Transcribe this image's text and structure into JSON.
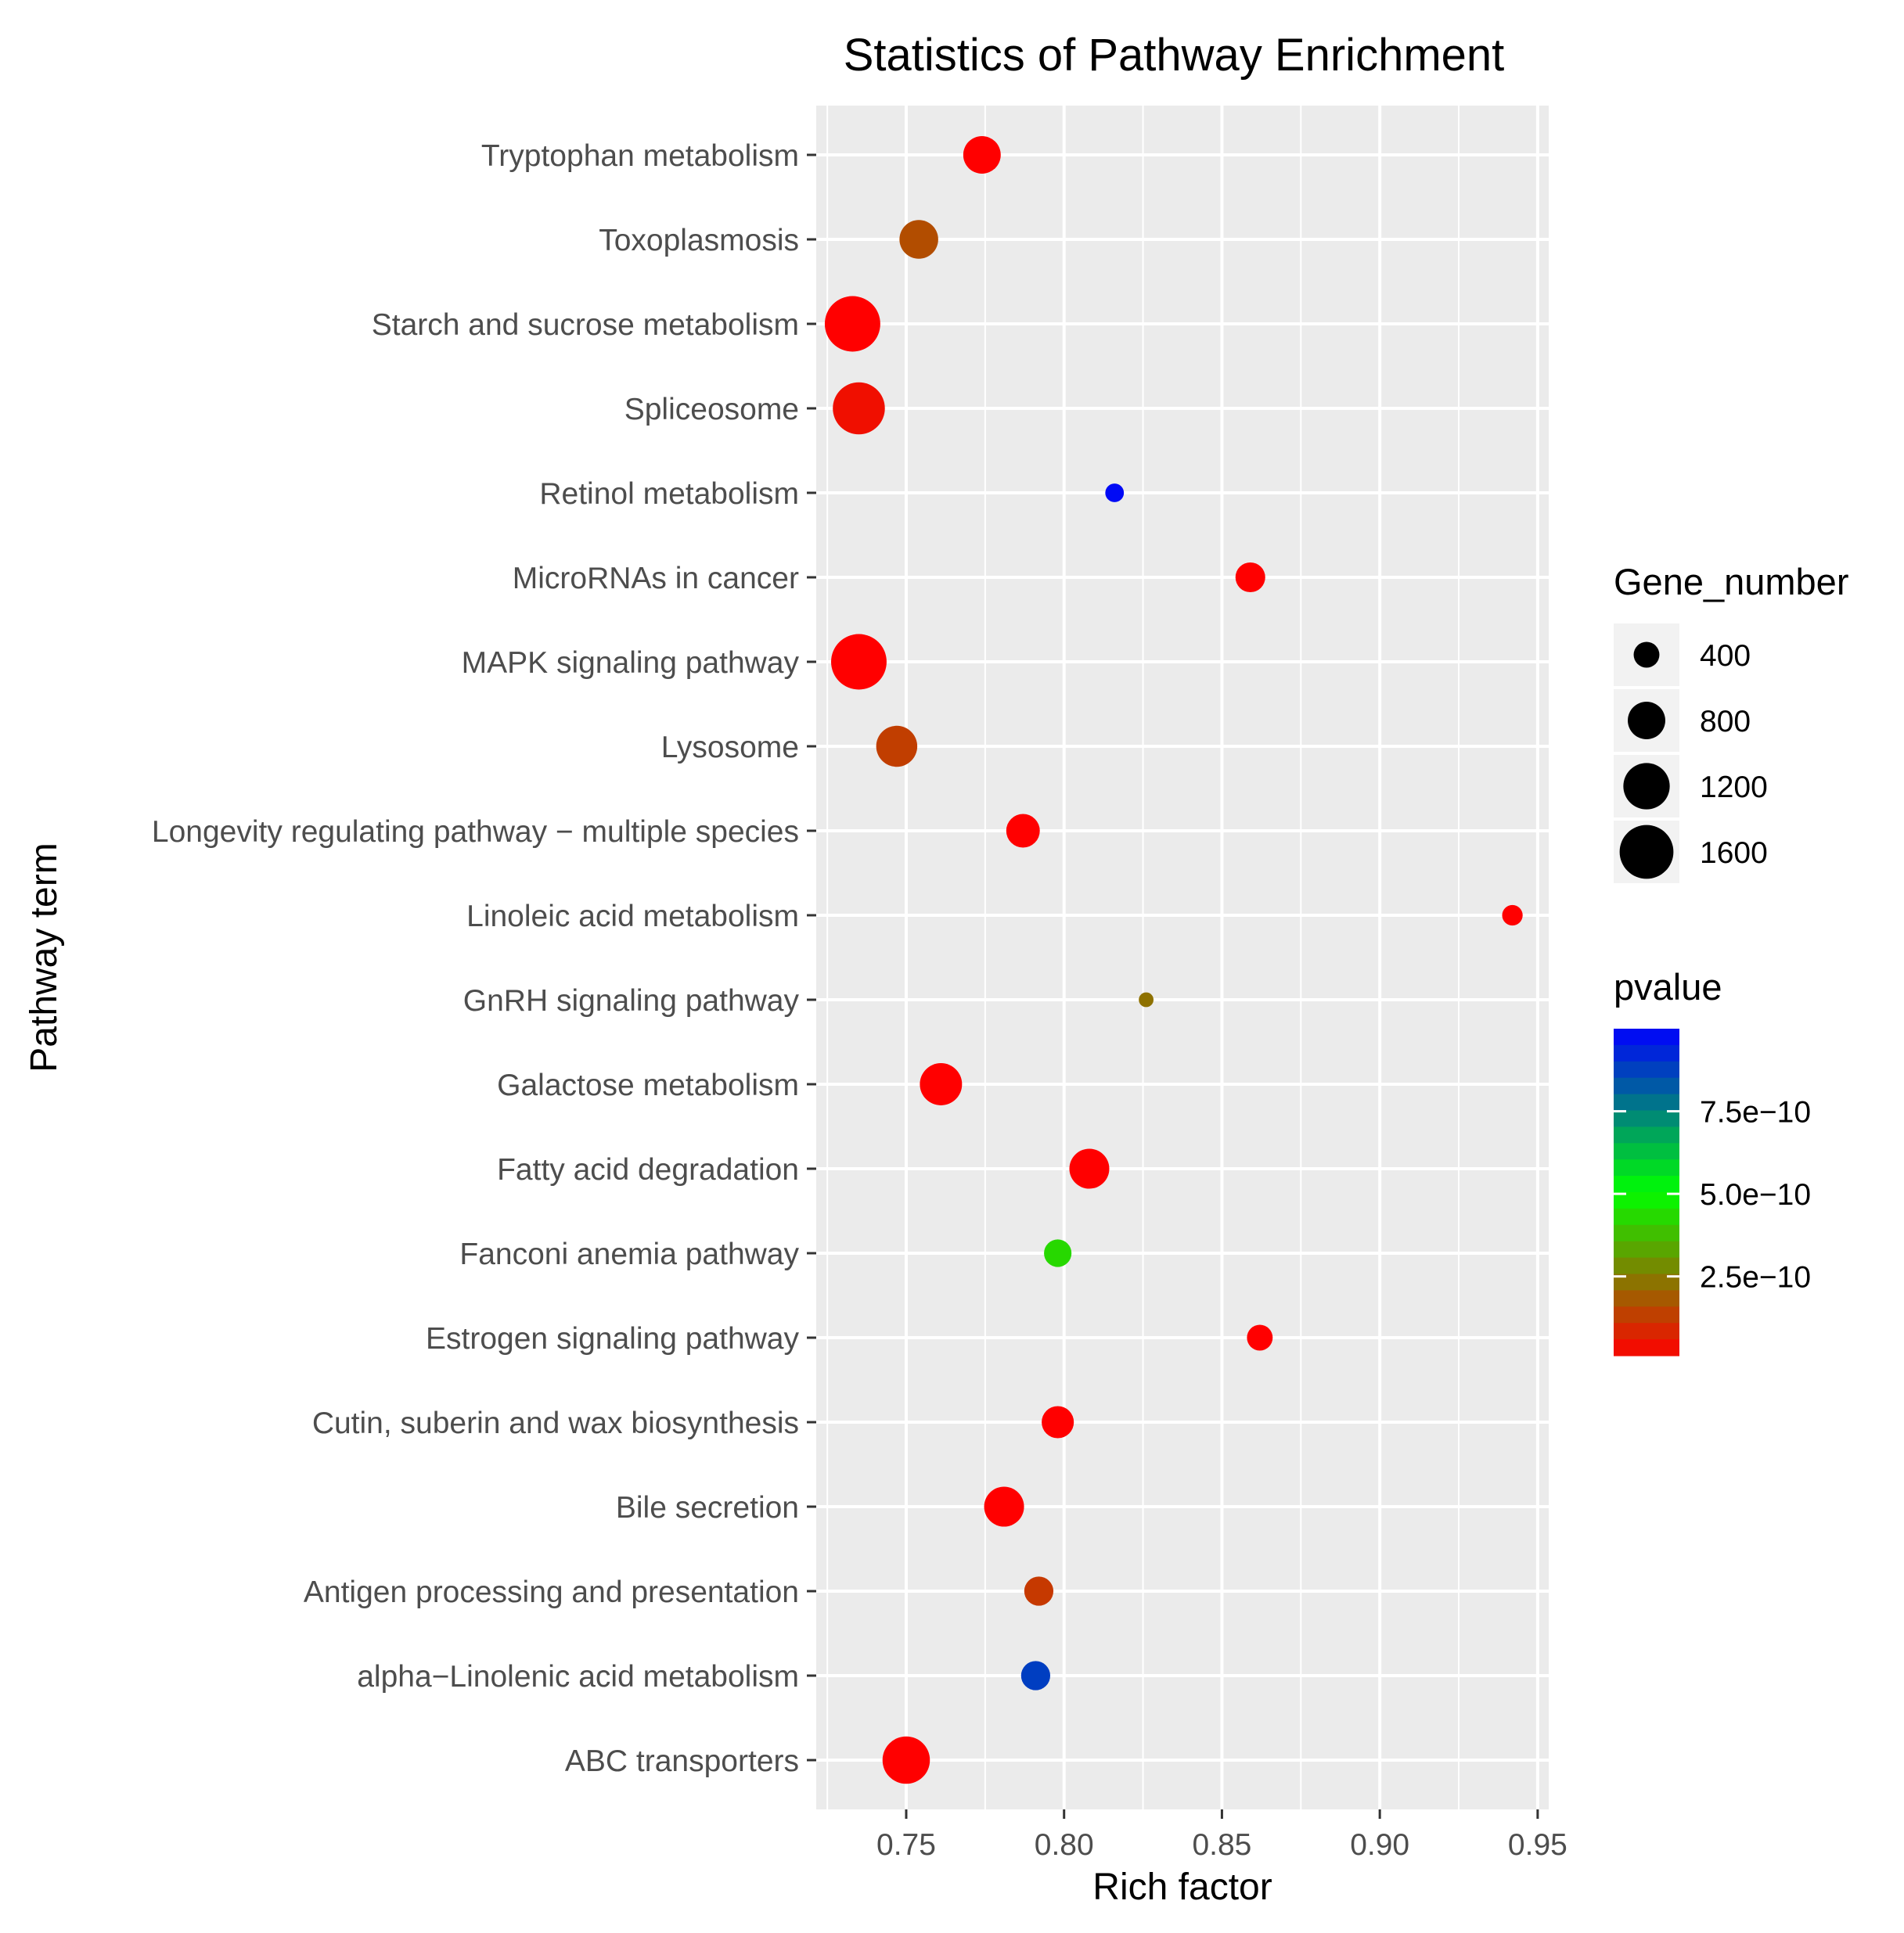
{
  "chart_data": {
    "type": "scatter",
    "title": "Statistics of Pathway Enrichment",
    "xlabel": "Rich factor",
    "ylabel": "Pathway term",
    "xlim": [
      0.7215,
      0.9535
    ],
    "xticks": [
      0.75,
      0.8,
      0.85,
      0.9,
      0.95
    ],
    "xtick_labels": [
      "0.75",
      "0.80",
      "0.85",
      "0.90",
      "0.95"
    ],
    "grid": true,
    "panel_background": "#ebebeb",
    "categories": [
      "Tryptophan metabolism",
      "Toxoplasmosis",
      "Starch and sucrose metabolism",
      "Spliceosome",
      "Retinol metabolism",
      "MicroRNAs in cancer",
      "MAPK signaling pathway",
      "Lysosome",
      "Longevity regulating pathway − multiple species",
      "Linoleic acid metabolism",
      "GnRH signaling pathway",
      "Galactose metabolism",
      "Fatty acid degradation",
      "Fanconi anemia pathway",
      "Estrogen signaling pathway",
      "Cutin, suberin and wax biosynthesis",
      "Bile secretion",
      "Antigen processing and presentation",
      "alpha−Linolenic acid metabolism",
      "ABC transporters"
    ],
    "points": [
      {
        "term": "Tryptophan metabolism",
        "rich_factor": 0.774,
        "gene_number": 800,
        "pvalue": 1e-11
      },
      {
        "term": "Toxoplasmosis",
        "rich_factor": 0.754,
        "gene_number": 850,
        "pvalue": 1.6e-10
      },
      {
        "term": "Starch and sucrose metabolism",
        "rich_factor": 0.733,
        "gene_number": 1700,
        "pvalue": 1e-11
      },
      {
        "term": "Spliceosome",
        "rich_factor": 0.735,
        "gene_number": 1500,
        "pvalue": 4e-11
      },
      {
        "term": "Retinol metabolism",
        "rich_factor": 0.816,
        "gene_number": 230,
        "pvalue": 9.8e-10
      },
      {
        "term": "MicroRNAs in cancer",
        "rich_factor": 0.859,
        "gene_number": 520,
        "pvalue": 1e-11
      },
      {
        "term": "MAPK signaling pathway",
        "rich_factor": 0.735,
        "gene_number": 1700,
        "pvalue": 1e-11
      },
      {
        "term": "Lysosome",
        "rich_factor": 0.747,
        "gene_number": 950,
        "pvalue": 1.3e-10
      },
      {
        "term": "Longevity regulating pathway − multiple species",
        "rich_factor": 0.787,
        "gene_number": 650,
        "pvalue": 1e-11
      },
      {
        "term": "Linoleic acid metabolism",
        "rich_factor": 0.942,
        "gene_number": 270,
        "pvalue": 1e-11
      },
      {
        "term": "GnRH signaling pathway",
        "rich_factor": 0.826,
        "gene_number": 160,
        "pvalue": 2.3e-10
      },
      {
        "term": "Galactose metabolism",
        "rich_factor": 0.761,
        "gene_number": 1000,
        "pvalue": 1e-11
      },
      {
        "term": "Fatty acid degradation",
        "rich_factor": 0.808,
        "gene_number": 900,
        "pvalue": 1e-11
      },
      {
        "term": "Fanconi anemia pathway",
        "rich_factor": 0.798,
        "gene_number": 450,
        "pvalue": 4.3e-10
      },
      {
        "term": "Estrogen signaling pathway",
        "rich_factor": 0.862,
        "gene_number": 400,
        "pvalue": 1e-11
      },
      {
        "term": "Cutin, suberin and wax biosynthesis",
        "rich_factor": 0.798,
        "gene_number": 600,
        "pvalue": 1e-11
      },
      {
        "term": "Bile secretion",
        "rich_factor": 0.781,
        "gene_number": 900,
        "pvalue": 1e-11
      },
      {
        "term": "Antigen processing and presentation",
        "rich_factor": 0.792,
        "gene_number": 500,
        "pvalue": 1.2e-10
      },
      {
        "term": "alpha−Linolenic acid metabolism",
        "rich_factor": 0.791,
        "gene_number": 500,
        "pvalue": 8.8e-10
      },
      {
        "term": "ABC transporters",
        "rich_factor": 0.75,
        "gene_number": 1250,
        "pvalue": 1e-11
      }
    ],
    "size_legend": {
      "title": "Gene_number",
      "values": [
        400,
        800,
        1200,
        1600
      ],
      "labels": [
        "400",
        "800",
        "1200",
        "1600"
      ],
      "range": [
        150,
        1750
      ]
    },
    "color_legend": {
      "title": "pvalue",
      "range": [
        1e-11,
        1e-09
      ],
      "ticks": [
        7.5e-10,
        5e-10,
        2.5e-10
      ],
      "tick_labels": [
        "7.5e−10",
        "5.0e−10",
        "2.5e−10"
      ],
      "low_color": "#ff0000",
      "mid_color": "#00ff00",
      "high_color": "#0000ff"
    },
    "legend_position": "right"
  }
}
